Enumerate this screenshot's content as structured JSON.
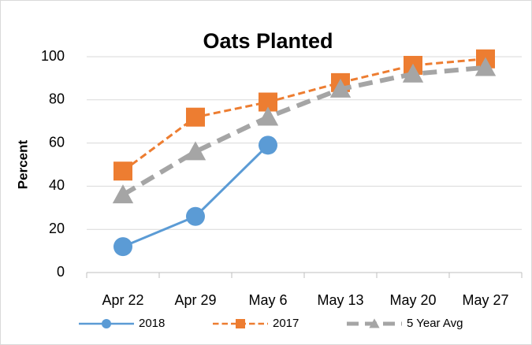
{
  "chart_data": {
    "type": "line",
    "title": "Oats Planted",
    "y_label": "Percent",
    "categories": [
      "Apr 22",
      "Apr 29",
      "May 6",
      "May 13",
      "May 20",
      "May 27"
    ],
    "series": [
      {
        "name": "2018",
        "color": "#5b9bd5",
        "marker": "circle",
        "dashed": false,
        "values": [
          12,
          26,
          59,
          null,
          null,
          null
        ]
      },
      {
        "name": "2017",
        "color": "#ed7d31",
        "marker": "square",
        "dashed": true,
        "values": [
          47,
          72,
          79,
          88,
          96,
          99
        ]
      },
      {
        "name": "5 Year Avg",
        "color": "#a5a5a5",
        "marker": "triangle",
        "dashed": true,
        "values": [
          36,
          56,
          72,
          85,
          92,
          95
        ]
      }
    ],
    "ylim": [
      0,
      100
    ],
    "yticks": [
      0,
      20,
      40,
      60,
      80,
      100
    ],
    "grid": true,
    "legend": "bottom"
  }
}
